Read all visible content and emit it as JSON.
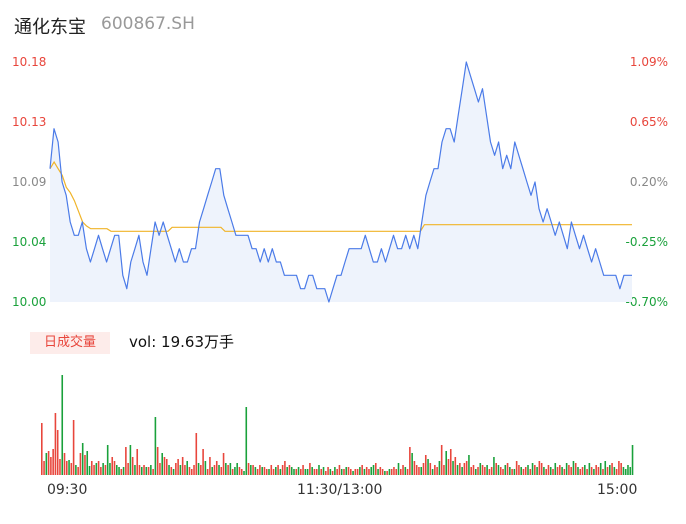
{
  "header": {
    "stock_name": "通化东宝",
    "stock_code": "600867.SH"
  },
  "volume_section": {
    "tab_label": "日成交量",
    "vol_text": "vol: 19.63万手"
  },
  "colors": {
    "up": "#e8463c",
    "down": "#1aa13b",
    "price_line": "#4b7be8",
    "avg_line": "#f0b429",
    "neutral": "#888888"
  },
  "chart_data": {
    "type": "line",
    "price_axis": {
      "ticks": [
        "10.18",
        "10.13",
        "10.09",
        "10.04",
        "10.00"
      ],
      "range": [
        10.0,
        10.18
      ]
    },
    "percent_axis": {
      "ticks": [
        "1.09%",
        "0.65%",
        "0.20%",
        "-0.25%",
        "-0.70%"
      ]
    },
    "x_tick_labels": [
      "09:30",
      "11:30/13:00",
      "15:00"
    ],
    "price_series": [
      10.1,
      10.13,
      10.12,
      10.09,
      10.08,
      10.06,
      10.05,
      10.05,
      10.06,
      10.04,
      10.03,
      10.04,
      10.05,
      10.04,
      10.03,
      10.04,
      10.05,
      10.05,
      10.02,
      10.01,
      10.03,
      10.04,
      10.05,
      10.03,
      10.02,
      10.04,
      10.06,
      10.05,
      10.06,
      10.05,
      10.04,
      10.03,
      10.04,
      10.03,
      10.03,
      10.04,
      10.04,
      10.06,
      10.07,
      10.08,
      10.09,
      10.1,
      10.1,
      10.08,
      10.07,
      10.06,
      10.05,
      10.05,
      10.05,
      10.05,
      10.04,
      10.04,
      10.03,
      10.04,
      10.03,
      10.04,
      10.03,
      10.03,
      10.02,
      10.02,
      10.02,
      10.02,
      10.01,
      10.01,
      10.02,
      10.02,
      10.01,
      10.01,
      10.01,
      10.0,
      10.01,
      10.02,
      10.02,
      10.03,
      10.04,
      10.04,
      10.04,
      10.04,
      10.05,
      10.04,
      10.03,
      10.03,
      10.04,
      10.03,
      10.04,
      10.05,
      10.04,
      10.04,
      10.05,
      10.04,
      10.05,
      10.04,
      10.06,
      10.08,
      10.09,
      10.1,
      10.1,
      10.12,
      10.13,
      10.13,
      10.12,
      10.14,
      10.16,
      10.18,
      10.17,
      10.16,
      10.15,
      10.16,
      10.14,
      10.12,
      10.11,
      10.12,
      10.1,
      10.11,
      10.1,
      10.12,
      10.11,
      10.1,
      10.09,
      10.08,
      10.09,
      10.07,
      10.06,
      10.07,
      10.06,
      10.05,
      10.06,
      10.05,
      10.04,
      10.06,
      10.05,
      10.04,
      10.05,
      10.04,
      10.03,
      10.04,
      10.03,
      10.02,
      10.02,
      10.02,
      10.02,
      10.01,
      10.02,
      10.02,
      10.02
    ],
    "avg_series": [
      10.1,
      10.105,
      10.1,
      10.095,
      10.086,
      10.082,
      10.076,
      10.068,
      10.06,
      10.057,
      10.055,
      10.055,
      10.055,
      10.055,
      10.055,
      10.053,
      10.053,
      10.053,
      10.053,
      10.053,
      10.053,
      10.053,
      10.053,
      10.053,
      10.053,
      10.053,
      10.053,
      10.053,
      10.053,
      10.053,
      10.056,
      10.056,
      10.056,
      10.056,
      10.056,
      10.056,
      10.056,
      10.056,
      10.056,
      10.056,
      10.056,
      10.056,
      10.056,
      10.053,
      10.053,
      10.053,
      10.053,
      10.053,
      10.053,
      10.053,
      10.053,
      10.053,
      10.053,
      10.053,
      10.053,
      10.053,
      10.053,
      10.053,
      10.053,
      10.053,
      10.053,
      10.053,
      10.053,
      10.053,
      10.053,
      10.053,
      10.053,
      10.053,
      10.053,
      10.053,
      10.053,
      10.053,
      10.053,
      10.053,
      10.053,
      10.053,
      10.053,
      10.053,
      10.053,
      10.053,
      10.053,
      10.053,
      10.053,
      10.053,
      10.053,
      10.053,
      10.053,
      10.053,
      10.053,
      10.053,
      10.053,
      10.053,
      10.058,
      10.058,
      10.058,
      10.058,
      10.058,
      10.058,
      10.058,
      10.058,
      10.058,
      10.058,
      10.058,
      10.058,
      10.058,
      10.058,
      10.058,
      10.058,
      10.058,
      10.058,
      10.058,
      10.058,
      10.058,
      10.058,
      10.058,
      10.058,
      10.058,
      10.058,
      10.058,
      10.058,
      10.058,
      10.058,
      10.058,
      10.058,
      10.058,
      10.058,
      10.058,
      10.058,
      10.058,
      10.058,
      10.058,
      10.058,
      10.058,
      10.058,
      10.058,
      10.058,
      10.058,
      10.058,
      10.058,
      10.058,
      10.058,
      10.058,
      10.058,
      10.058
    ],
    "volume_series": [
      52,
      14,
      22,
      24,
      18,
      26,
      62,
      45,
      16,
      100,
      22,
      14,
      15,
      12,
      55,
      10,
      8,
      22,
      32,
      20,
      24,
      9,
      14,
      10,
      12,
      14,
      8,
      12,
      10,
      30,
      12,
      18,
      14,
      10,
      8,
      6,
      8,
      28,
      12,
      30,
      18,
      10,
      26,
      10,
      8,
      10,
      8,
      8,
      10,
      6,
      58,
      28,
      12,
      22,
      18,
      16,
      10,
      8,
      6,
      12,
      16,
      10,
      18,
      10,
      14,
      8,
      6,
      10,
      42,
      12,
      10,
      26,
      14,
      6,
      18,
      8,
      10,
      14,
      10,
      8,
      22,
      12,
      10,
      12,
      6,
      8,
      12,
      8,
      6,
      4,
      68,
      12,
      10,
      10,
      8,
      6,
      10,
      8,
      8,
      6,
      6,
      10,
      6,
      8,
      10,
      6,
      10,
      14,
      8,
      10,
      8,
      6,
      6,
      8,
      6,
      10,
      6,
      6,
      12,
      8,
      6,
      6,
      10,
      6,
      8,
      4,
      8,
      6,
      4,
      8,
      6,
      10,
      6,
      6,
      8,
      8,
      6,
      4,
      6,
      6,
      8,
      10,
      6,
      8,
      6,
      8,
      10,
      12,
      6,
      8,
      6,
      4,
      4,
      6,
      6,
      8,
      6,
      12,
      6,
      10,
      8,
      6,
      28,
      22,
      14,
      10,
      8,
      8,
      12,
      20,
      16,
      12,
      6,
      10,
      8,
      14,
      30,
      10,
      24,
      16,
      26,
      14,
      18,
      10,
      12,
      8,
      12,
      14,
      20,
      8,
      10,
      6,
      8,
      12,
      10,
      8,
      10,
      6,
      8,
      18,
      12,
      10,
      8,
      6,
      10,
      12,
      8,
      6,
      6,
      14,
      10,
      8,
      6,
      8,
      10,
      6,
      12,
      10,
      8,
      14,
      12,
      8,
      6,
      10,
      8,
      6,
      12,
      8,
      10,
      8,
      6,
      12,
      10,
      8,
      14,
      12,
      8,
      6,
      8,
      10,
      6,
      12,
      8,
      6,
      10,
      8,
      12,
      6,
      14,
      8,
      10,
      12,
      8,
      6,
      14,
      12,
      8,
      6,
      10,
      8,
      30
    ],
    "volume_up": [
      1,
      1,
      0,
      1,
      1,
      1,
      1,
      1,
      1,
      0,
      1,
      1,
      0,
      1,
      1,
      0,
      1,
      1,
      0,
      1,
      0,
      0,
      1,
      1,
      0,
      1,
      1,
      0,
      1,
      0,
      0,
      1,
      1,
      0,
      0,
      1,
      0,
      1,
      1,
      0,
      1,
      0,
      1,
      1,
      0,
      1,
      0,
      1,
      0,
      1,
      0,
      1,
      1,
      0,
      1,
      1,
      0,
      1,
      0,
      1,
      1,
      0,
      1,
      1,
      0,
      1,
      1,
      1,
      1,
      0,
      1,
      1,
      0,
      1,
      1,
      0,
      1,
      1,
      0,
      1,
      1,
      0,
      1,
      0,
      1,
      0,
      0,
      1,
      1,
      0,
      0,
      1,
      0,
      1,
      0,
      1,
      1,
      0,
      1,
      1,
      0,
      1,
      1,
      0,
      1,
      0,
      1,
      1,
      0,
      1,
      0,
      0,
      1,
      0,
      1,
      1,
      0,
      0,
      1,
      0,
      1,
      1,
      0,
      1,
      0,
      1,
      1,
      0,
      1,
      0,
      1,
      1,
      0,
      1,
      0,
      1,
      1,
      0,
      1,
      1,
      0,
      1,
      0,
      1,
      1,
      0,
      0,
      1,
      0,
      1,
      1,
      0,
      1,
      0,
      1,
      1,
      1,
      0,
      1,
      1,
      0,
      1,
      1,
      0,
      1,
      1,
      1,
      0,
      1,
      1,
      0,
      1,
      0,
      1,
      1,
      0,
      1,
      1,
      0,
      1,
      1,
      0,
      1,
      0,
      1,
      0,
      1,
      1,
      0,
      1,
      1,
      0,
      1,
      0,
      1,
      1,
      0,
      1,
      1,
      0,
      1,
      0,
      1,
      1,
      0,
      1,
      0,
      1,
      0,
      1,
      1,
      0,
      1,
      1,
      0,
      1,
      0,
      1,
      0,
      1,
      1,
      0,
      1,
      1,
      0,
      1,
      0,
      1,
      1,
      0,
      1,
      0,
      1,
      1,
      0,
      1,
      0,
      1,
      1,
      0,
      1,
      0,
      1,
      0,
      1,
      1,
      0,
      1,
      0,
      1,
      0,
      1,
      0,
      1,
      1,
      1
    ]
  }
}
